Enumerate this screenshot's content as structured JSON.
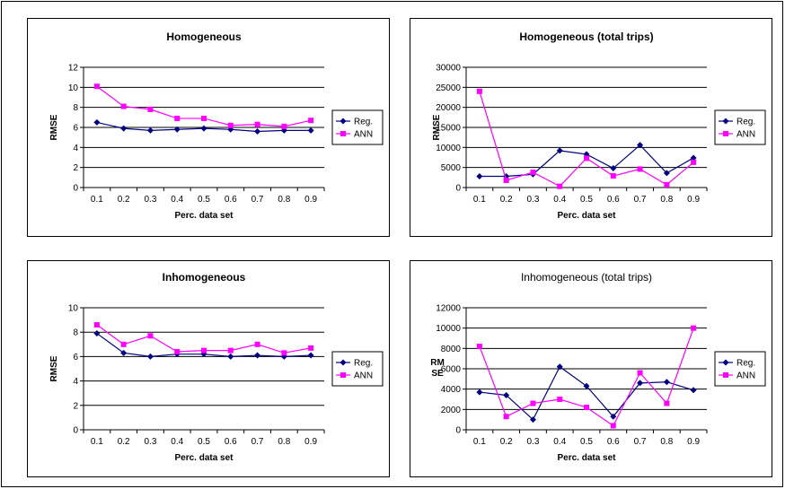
{
  "chart_data": [
    {
      "type": "line",
      "title": "Homogeneous",
      "title_bold": true,
      "xlabel": "Perc. data set",
      "ylabel": "RMSE",
      "categories": [
        "0.1",
        "0.2",
        "0.3",
        "0.4",
        "0.5",
        "0.6",
        "0.7",
        "0.8",
        "0.9"
      ],
      "ylim": [
        0,
        12
      ],
      "yticks": [
        "0",
        "2",
        "4",
        "6",
        "8",
        "10",
        "12"
      ],
      "grid": true,
      "legend": "right",
      "series": [
        {
          "name": "Reg.",
          "color": "#000080",
          "marker": "diamond",
          "values": [
            6.5,
            5.9,
            5.7,
            5.8,
            5.9,
            5.8,
            5.6,
            5.7,
            5.7
          ]
        },
        {
          "name": "ANN",
          "color": "#ff00ff",
          "marker": "square",
          "values": [
            10.1,
            8.1,
            7.8,
            6.9,
            6.9,
            6.2,
            6.3,
            6.1,
            6.7
          ]
        }
      ]
    },
    {
      "type": "line",
      "title": "Homogeneous (total trips)",
      "title_bold": true,
      "xlabel": "Perc. data set",
      "ylabel": "RMSE",
      "categories": [
        "0.1",
        "0.2",
        "0.3",
        "0.4",
        "0.5",
        "0.6",
        "0.7",
        "0.8",
        "0.9"
      ],
      "ylim": [
        0,
        30000
      ],
      "yticks": [
        "0",
        "5000",
        "10000",
        "15000",
        "20000",
        "25000",
        "30000"
      ],
      "grid": true,
      "legend": "right",
      "series": [
        {
          "name": "Reg.",
          "color": "#000080",
          "marker": "diamond",
          "values": [
            2800,
            2800,
            3300,
            9200,
            8300,
            4800,
            10600,
            3600,
            7400
          ]
        },
        {
          "name": "ANN",
          "color": "#ff00ff",
          "marker": "square",
          "values": [
            24000,
            1800,
            3800,
            300,
            7300,
            2900,
            4600,
            700,
            6300
          ]
        }
      ]
    },
    {
      "type": "line",
      "title": "Inhomogeneous",
      "title_bold": true,
      "xlabel": "Perc. data set",
      "ylabel": "RMSE",
      "categories": [
        "0.1",
        "0.2",
        "0.3",
        "0.4",
        "0.5",
        "0.6",
        "0.7",
        "0.8",
        "0.9"
      ],
      "ylim": [
        0,
        10
      ],
      "yticks": [
        "0",
        "2",
        "4",
        "6",
        "8",
        "10"
      ],
      "grid": true,
      "legend": "right",
      "series": [
        {
          "name": "Reg.",
          "color": "#000080",
          "marker": "diamond",
          "values": [
            7.9,
            6.3,
            6.0,
            6.2,
            6.2,
            6.0,
            6.1,
            6.0,
            6.1
          ]
        },
        {
          "name": "ANN",
          "color": "#ff00ff",
          "marker": "square",
          "values": [
            8.6,
            7.0,
            7.7,
            6.4,
            6.5,
            6.5,
            7.0,
            6.3,
            6.7
          ]
        }
      ]
    },
    {
      "type": "line",
      "title": "Inhomogeneous (total trips)",
      "title_bold": false,
      "xlabel": "Perc. data set",
      "ylabel": "RM SE",
      "ylabel_lines": [
        "RM",
        "SE"
      ],
      "categories": [
        "0.1",
        "0.2",
        "0.3",
        "0.4",
        "0.5",
        "0.6",
        "0.7",
        "0.8",
        "0.9"
      ],
      "ylim": [
        0,
        12000
      ],
      "yticks": [
        "0",
        "2000",
        "4000",
        "6000",
        "8000",
        "10000",
        "12000"
      ],
      "grid": true,
      "legend": "right",
      "series": [
        {
          "name": "Reg.",
          "color": "#000080",
          "marker": "diamond",
          "values": [
            3700,
            3400,
            1000,
            6200,
            4300,
            1300,
            4600,
            4700,
            3900
          ]
        },
        {
          "name": "ANN",
          "color": "#ff00ff",
          "marker": "square",
          "values": [
            8200,
            1300,
            2600,
            3000,
            2200,
            400,
            5600,
            2600,
            10000
          ]
        }
      ]
    }
  ]
}
